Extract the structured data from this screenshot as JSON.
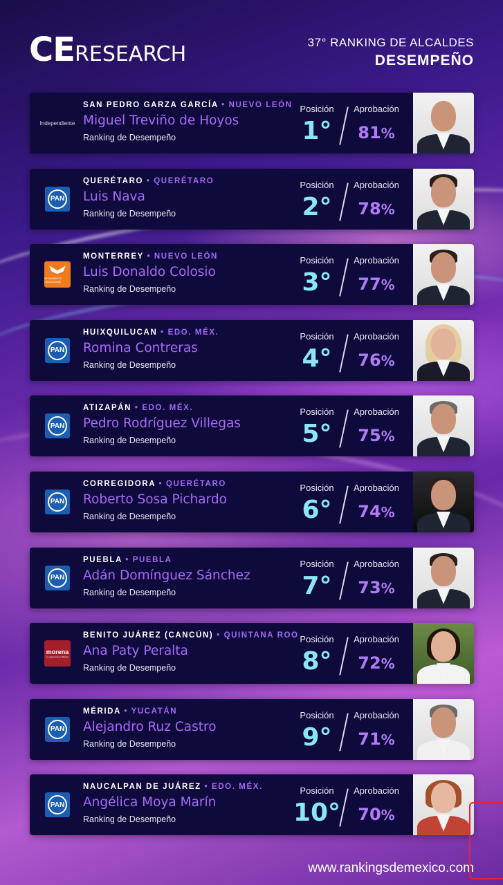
{
  "header": {
    "logo_ce": "CE",
    "logo_rest": "RESEARCH",
    "subtitle": "37° RANKING DE ALCALDES",
    "title": "DESEMPEÑO"
  },
  "labels": {
    "position": "Posición",
    "approval": "Aprobación",
    "ranking": "Ranking de Desempeño"
  },
  "parties": {
    "independiente": "Independiente",
    "pan": "PAN",
    "mc": "MOVIMIENTO CIUDADANO",
    "morena": "morena",
    "morena_sub": "La esperanza de México"
  },
  "rows": [
    {
      "city": "SAN PEDRO GARZA GARCÍA",
      "state": "NUEVO LEÓN",
      "name": "Miguel Treviño de Hoyos",
      "position": "1°",
      "approval": "81",
      "party": "independiente"
    },
    {
      "city": "QUERÉTARO",
      "state": "QUERÉTARO",
      "name": "Luis Nava",
      "position": "2°",
      "approval": "78",
      "party": "pan"
    },
    {
      "city": "MONTERREY",
      "state": "NUEVO LEÓN",
      "name": "Luis Donaldo Colosio",
      "position": "3°",
      "approval": "77",
      "party": "mc"
    },
    {
      "city": "HUIXQUILUCAN",
      "state": "EDO. MÉX.",
      "name": "Romina Contreras",
      "position": "4°",
      "approval": "76",
      "party": "pan"
    },
    {
      "city": "ATIZAPÁN",
      "state": "EDO. MÉX.",
      "name": "Pedro Rodríguez Villegas",
      "position": "5°",
      "approval": "75",
      "party": "pan"
    },
    {
      "city": "CORREGIDORA",
      "state": "QUERÉTARO",
      "name": "Roberto Sosa Pichardo",
      "position": "6°",
      "approval": "74",
      "party": "pan"
    },
    {
      "city": "PUEBLA",
      "state": "PUEBLA",
      "name": "Adán Domínguez Sánchez",
      "position": "7°",
      "approval": "73",
      "party": "pan"
    },
    {
      "city": "BENITO JUÁREZ (CANCÚN)",
      "state": "QUINTANA ROO",
      "name": "Ana Paty Peralta",
      "position": "8°",
      "approval": "72",
      "party": "morena"
    },
    {
      "city": "MÉRIDA",
      "state": "YUCATÁN",
      "name": "Alejandro Ruz Castro",
      "position": "9°",
      "approval": "71",
      "party": "pan"
    },
    {
      "city": "NAUCALPAN DE JUÁREZ",
      "state": "EDO. MÉX.",
      "name": "Angélica Moya Marín",
      "position": "10°",
      "approval": "70",
      "party": "pan"
    }
  ],
  "percent_sign": "%",
  "separator": "•",
  "footer": {
    "url": "www.rankingsdemexico.com"
  }
}
